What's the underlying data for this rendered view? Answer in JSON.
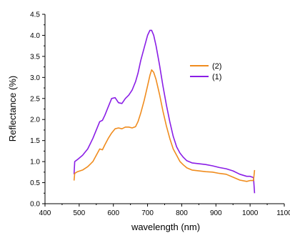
{
  "chart_data": {
    "type": "line",
    "title": "",
    "xlabel": "wavelength (nm)",
    "ylabel": "Reflectance (%)",
    "xlim": [
      400,
      1100
    ],
    "ylim": [
      0,
      4.5
    ],
    "xticks": [
      400,
      500,
      600,
      700,
      800,
      900,
      1000,
      1100
    ],
    "yticks": [
      0.0,
      0.5,
      1.0,
      1.5,
      2.0,
      2.5,
      3.0,
      3.5,
      4.0,
      4.5
    ],
    "xtick_labels": [
      "400",
      "500",
      "600",
      "700",
      "800",
      "900",
      "1000",
      "1100"
    ],
    "ytick_labels": [
      "0.0",
      "0.5",
      "1.0",
      "1.5",
      "2.0",
      "2.5",
      "3.0",
      "3.5",
      "4.0",
      "4.5"
    ],
    "grid": false,
    "legend_position": "right",
    "series": [
      {
        "name": "(2)",
        "color": "#f08c1e",
        "x": [
          485,
          487,
          495,
          510,
          525,
          540,
          550,
          560,
          568,
          575,
          585,
          595,
          605,
          615,
          625,
          635,
          645,
          655,
          665,
          672,
          680,
          690,
          700,
          707,
          712,
          718,
          725,
          735,
          745,
          755,
          765,
          775,
          785,
          795,
          805,
          815,
          830,
          850,
          870,
          890,
          910,
          930,
          950,
          970,
          990,
          1000,
          1010,
          1013
        ],
        "y": [
          0.55,
          0.72,
          0.76,
          0.8,
          0.88,
          1.0,
          1.15,
          1.3,
          1.28,
          1.4,
          1.55,
          1.68,
          1.78,
          1.8,
          1.78,
          1.82,
          1.82,
          1.8,
          1.83,
          1.95,
          2.15,
          2.45,
          2.8,
          3.05,
          3.18,
          3.12,
          2.95,
          2.6,
          2.2,
          1.85,
          1.55,
          1.3,
          1.15,
          1.0,
          0.92,
          0.85,
          0.8,
          0.78,
          0.76,
          0.75,
          0.72,
          0.7,
          0.63,
          0.56,
          0.53,
          0.55,
          0.55,
          0.8
        ]
      },
      {
        "name": "(1)",
        "color": "#8a1ee6",
        "x": [
          485,
          487,
          495,
          510,
          525,
          540,
          550,
          560,
          568,
          575,
          585,
          595,
          605,
          615,
          625,
          635,
          645,
          655,
          665,
          672,
          680,
          690,
          700,
          707,
          712,
          718,
          725,
          735,
          745,
          755,
          765,
          775,
          785,
          795,
          805,
          815,
          830,
          850,
          870,
          890,
          910,
          930,
          950,
          970,
          990,
          1000,
          1010,
          1013
        ],
        "y": [
          0.7,
          1.0,
          1.05,
          1.15,
          1.3,
          1.55,
          1.75,
          1.95,
          1.98,
          2.1,
          2.3,
          2.5,
          2.52,
          2.4,
          2.38,
          2.5,
          2.58,
          2.7,
          2.9,
          3.1,
          3.4,
          3.7,
          4.0,
          4.12,
          4.12,
          4.0,
          3.75,
          3.3,
          2.8,
          2.35,
          1.95,
          1.6,
          1.35,
          1.2,
          1.1,
          1.02,
          0.97,
          0.95,
          0.93,
          0.9,
          0.86,
          0.83,
          0.78,
          0.7,
          0.65,
          0.65,
          0.62,
          0.25
        ]
      }
    ]
  }
}
